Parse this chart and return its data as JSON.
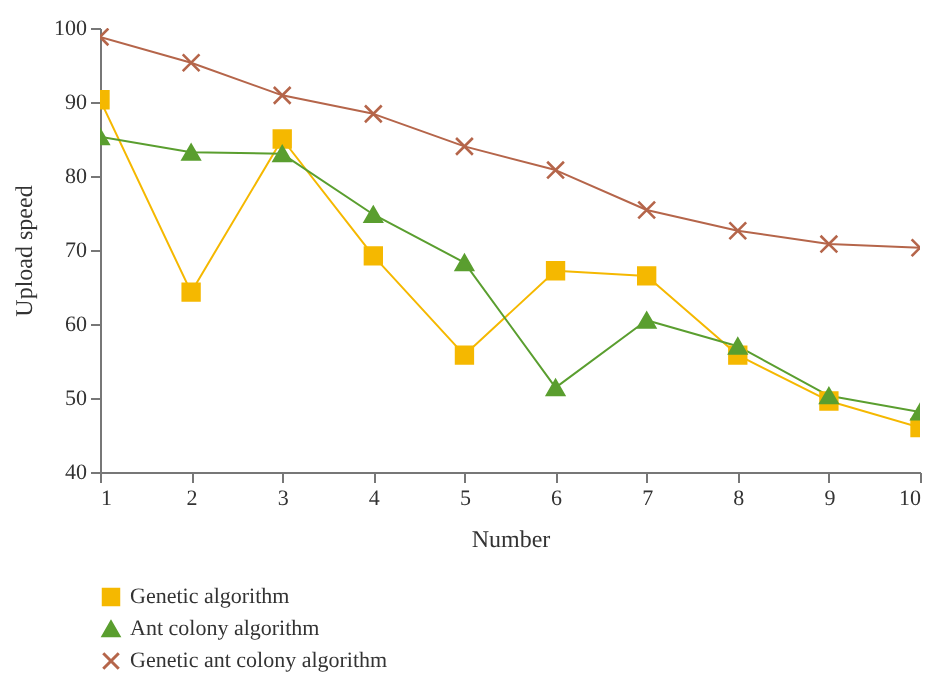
{
  "chart_data": {
    "type": "line",
    "xlabel": "Number",
    "ylabel": "Upload speed",
    "x": [
      1,
      2,
      3,
      4,
      5,
      6,
      7,
      8,
      9,
      10
    ],
    "xlim": [
      1,
      10
    ],
    "xticks": [
      1,
      2,
      3,
      4,
      5,
      6,
      7,
      8,
      9,
      10
    ],
    "ylim": [
      40,
      100
    ],
    "yticks": [
      40,
      50,
      60,
      70,
      80,
      90,
      100
    ],
    "grid": false,
    "legend": "bottom left",
    "series": [
      {
        "name": "Genetic algorithm",
        "color": "#f5b800",
        "marker": "square",
        "values": [
          90.3,
          64.3,
          85,
          69.2,
          55.8,
          67.2,
          66.5,
          55.8,
          49.6,
          46
        ]
      },
      {
        "name": "Ant colony algorithm",
        "color": "#5a9e2f",
        "marker": "triangle",
        "values": [
          85.3,
          83.2,
          83,
          74.8,
          68.3,
          51.4,
          60.5,
          57,
          50.3,
          48.1
        ]
      },
      {
        "name": "Genetic ant colony algorithm",
        "color": "#b5654a",
        "marker": "cross",
        "values": [
          98.8,
          95.3,
          90.9,
          88.4,
          84,
          80.8,
          75.4,
          72.6,
          70.8,
          70.3
        ]
      }
    ]
  }
}
